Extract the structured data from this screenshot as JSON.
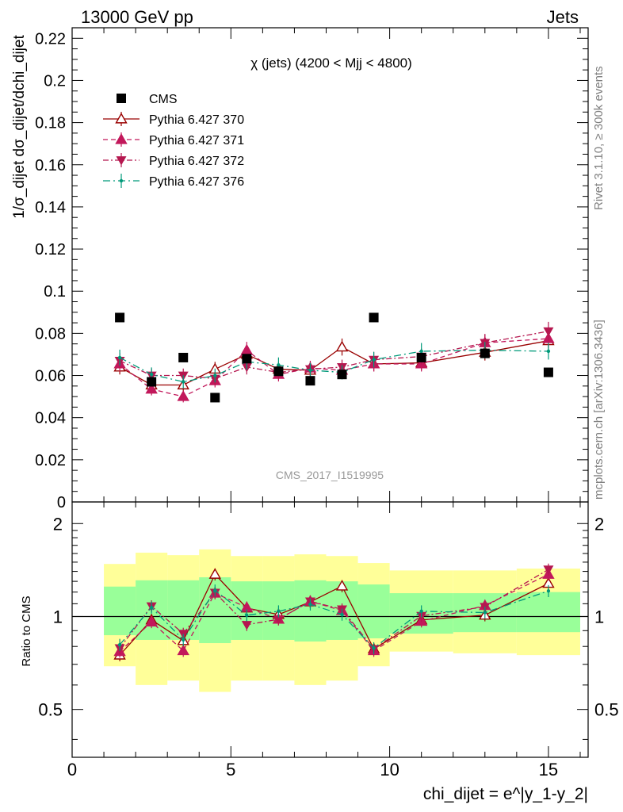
{
  "header": {
    "left": "13000 GeV pp",
    "right": "Jets"
  },
  "side": {
    "rivet": "Rivet 3.1.10, ≥ 300k events",
    "mcplots": "mcplots.cern.ch [arXiv:1306.3436]"
  },
  "watermark": "CMS_2017_I1519995",
  "chart_data": [
    {
      "type": "scatter",
      "title": "χ (jets) (4200 < Mjj < 4800)",
      "ylabel": "1/σ_dijet dσ_dijet/dchi_dijet",
      "xlim": [
        0,
        16.25
      ],
      "ylim": [
        0,
        0.225
      ],
      "yticks": [
        "0",
        "0.02",
        "0.04",
        "0.06",
        "0.08",
        "0.1",
        "0.12",
        "0.14",
        "0.16",
        "0.18",
        "0.2",
        "0.22"
      ],
      "legend_position": "top-left",
      "x": [
        1.5,
        2.5,
        3.5,
        4.5,
        5.5,
        6.5,
        7.5,
        8.5,
        9.5,
        11,
        13,
        15
      ],
      "series": [
        {
          "name": "CMS",
          "color": "#000000",
          "marker": "square",
          "values": [
            0.0875,
            0.057,
            0.0685,
            0.0495,
            0.068,
            0.062,
            0.0575,
            0.0605,
            0.0875,
            0.0685,
            0.0705,
            0.0615
          ]
        },
        {
          "name": "Pythia 6.427 370",
          "color": "#990000",
          "marker": "triangle-up-open",
          "line": "solid",
          "values": [
            0.064,
            0.0555,
            0.0555,
            0.063,
            0.07,
            0.063,
            0.0625,
            0.0735,
            0.0655,
            0.066,
            0.071,
            0.0765
          ]
        },
        {
          "name": "Pythia 6.427 371",
          "color": "#c2185b",
          "marker": "triangle-up",
          "line": "dashed",
          "values": [
            0.0655,
            0.0535,
            0.05,
            0.0575,
            0.072,
            0.0605,
            0.0635,
            0.0625,
            0.0655,
            0.0655,
            0.0755,
            0.0775
          ]
        },
        {
          "name": "Pythia 6.427 372",
          "color": "#b5174f",
          "marker": "triangle-down",
          "line": "dashdot",
          "values": [
            0.067,
            0.06,
            0.06,
            0.0585,
            0.064,
            0.0615,
            0.063,
            0.064,
            0.0675,
            0.069,
            0.0755,
            0.081
          ]
        },
        {
          "name": "Pythia 6.427 376",
          "color": "#009a7a",
          "marker": "dot",
          "line": "dashdot-sparse",
          "values": [
            0.0685,
            0.0605,
            0.057,
            0.06,
            0.0665,
            0.065,
            0.0625,
            0.0615,
            0.0675,
            0.0715,
            0.072,
            0.0715
          ]
        }
      ]
    },
    {
      "type": "scatter",
      "ylabel": "Ratio to CMS",
      "xlabel": "chi_dijet = e^|y_1-y_2|",
      "xlim": [
        0,
        16.25
      ],
      "xticks": [
        "0",
        "5",
        "10",
        "15"
      ],
      "ylim": [
        0.35,
        2.35
      ],
      "ylim_scale": "log",
      "yticks": [
        "0.5",
        "1",
        "2"
      ],
      "reference_line": 1,
      "bands": {
        "x_edges": [
          1,
          2,
          3,
          4,
          5,
          6,
          7,
          8,
          9,
          10,
          12,
          14,
          16
        ],
        "inner": {
          "color": "#99ff99",
          "lo": [
            0.87,
            0.84,
            0.84,
            0.82,
            0.84,
            0.84,
            0.83,
            0.84,
            0.85,
            0.88,
            0.89,
            0.89
          ],
          "hi": [
            1.25,
            1.31,
            1.31,
            1.34,
            1.3,
            1.3,
            1.31,
            1.3,
            1.27,
            1.19,
            1.19,
            1.2
          ]
        },
        "outer": {
          "color": "#ffff99",
          "lo": [
            0.69,
            0.6,
            0.62,
            0.57,
            0.62,
            0.62,
            0.6,
            0.62,
            0.69,
            0.77,
            0.76,
            0.75
          ],
          "hi": [
            1.48,
            1.61,
            1.58,
            1.65,
            1.57,
            1.57,
            1.59,
            1.57,
            1.49,
            1.41,
            1.41,
            1.43
          ]
        }
      },
      "x": [
        1.5,
        2.5,
        3.5,
        4.5,
        5.5,
        6.5,
        7.5,
        8.5,
        9.5,
        11,
        13,
        15
      ],
      "series": [
        {
          "name": "Pythia 6.427 370",
          "color": "#990000",
          "marker": "triangle-up-open",
          "line": "solid",
          "values": [
            0.75,
            0.975,
            0.835,
            1.37,
            1.065,
            1.015,
            1.115,
            1.255,
            0.785,
            0.975,
            1.01,
            1.28
          ]
        },
        {
          "name": "Pythia 6.427 371",
          "color": "#c2185b",
          "marker": "triangle-up",
          "line": "dashed",
          "values": [
            0.77,
            0.96,
            0.775,
            1.19,
            1.07,
            0.98,
            1.12,
            1.045,
            0.775,
            0.965,
            1.085,
            1.37
          ]
        },
        {
          "name": "Pythia 6.427 372",
          "color": "#b5174f",
          "marker": "triangle-down",
          "line": "dashdot",
          "values": [
            0.79,
            1.08,
            0.88,
            1.195,
            0.94,
            0.98,
            1.12,
            1.055,
            0.785,
            1.005,
            1.075,
            1.42
          ]
        },
        {
          "name": "Pythia 6.427 376",
          "color": "#009a7a",
          "marker": "dot",
          "line": "dashdot-sparse",
          "values": [
            0.81,
            1.07,
            0.84,
            1.215,
            1.01,
            1.04,
            1.095,
            1.015,
            0.79,
            1.04,
            1.03,
            1.21
          ]
        }
      ]
    }
  ]
}
